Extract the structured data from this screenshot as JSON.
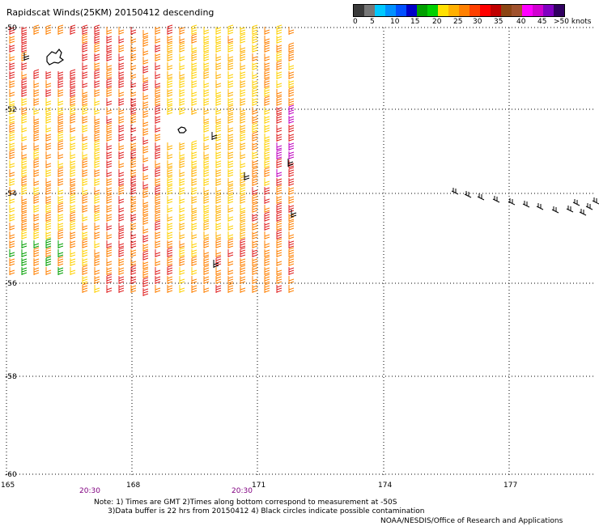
{
  "title": "Rapidscat Winds(25KM) 20150412 descending",
  "legend": {
    "labels": [
      "0",
      "5",
      "10",
      "15",
      "20",
      "25",
      "30",
      "35",
      "40",
      "45",
      ">50 knots"
    ],
    "colors": [
      "#3a3a3a",
      "#777777",
      "#00c8ff",
      "#0090ff",
      "#0050ff",
      "#0000c8",
      "#00a000",
      "#00d000",
      "#ffe000",
      "#ffb000",
      "#ff8000",
      "#ff4000",
      "#ff0000",
      "#c00000",
      "#8b4513",
      "#a0522d",
      "#ff00ff",
      "#d000d0",
      "#8000c0",
      "#300060"
    ]
  },
  "map": {
    "lat_labels": [
      "-50",
      "-52",
      "-54",
      "-56",
      "-58",
      "-60"
    ],
    "lon_labels": [
      "165",
      "168",
      "171",
      "174",
      "177"
    ],
    "time_labels": [
      "20:30",
      "20:30"
    ],
    "time_color": "#800080",
    "wind_colors": {
      "green": "#00a000",
      "yellow": "#ffd000",
      "orange": "#ff8000",
      "red": "#e02020",
      "black": "#000000",
      "magenta": "#c000c0"
    }
  },
  "notes": {
    "line1": "Note: 1) Times are GMT 2)Times along bottom correspond to measurement at -50S",
    "line2": "      3)Data buffer is 22 hrs from 20150412 4) Black circles indicate possible contamination",
    "credit": "NOAA/NESDIS/Office of Research and Applications"
  }
}
